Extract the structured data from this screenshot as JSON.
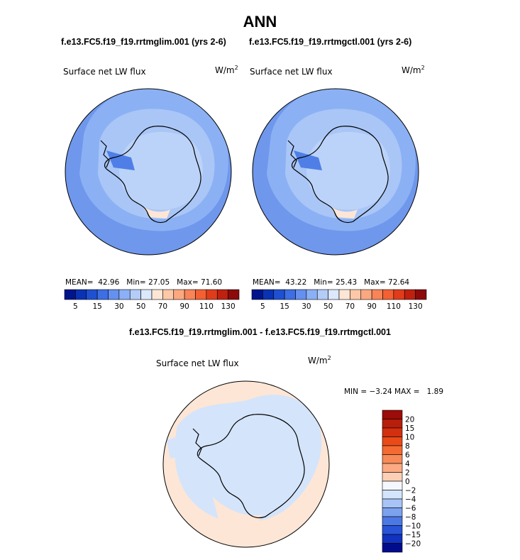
{
  "title": "ANN",
  "panels": [
    {
      "case_label": "f.e13.FC5.f19_f19.rrtmglim.001 (yrs 2-6)",
      "variable": "Surface net LW flux",
      "units_base": "W/m",
      "units_exp": "2",
      "stats": {
        "mean_label": "MEAN=",
        "mean": "42.96",
        "min_label": "Min=",
        "min": "27.05",
        "max_label": "Max=",
        "max": "71.60"
      }
    },
    {
      "case_label": "f.e13.FC5.f19_f19.rrtmgctl.001 (yrs 2-6)",
      "variable": "Surface net LW flux",
      "units_base": "W/m",
      "units_exp": "2",
      "stats": {
        "mean_label": "MEAN=",
        "mean": "43.22",
        "min_label": "Min=",
        "min": "25.43",
        "max_label": "Max=",
        "max": "72.64"
      }
    }
  ],
  "difference": {
    "title": "f.e13.FC5.f19_f19.rrtmglim.001 - f.e13.FC5.f19_f19.rrtmgctl.001",
    "variable": "Surface net LW flux",
    "units_base": "W/m",
    "units_exp": "2",
    "min_label": "MIN =",
    "min": "−3.24",
    "max_label": "MAX =",
    "max": "1.89"
  },
  "chart_data": [
    {
      "type": "heatmap",
      "projection": "south-polar-stereographic",
      "title": "f.e13.FC5.f19_f19.rrtmglim.001 (yrs 2-6)",
      "field": "Surface net LW flux",
      "units": "W/m2",
      "mean": 42.96,
      "min": 27.05,
      "max": 71.6,
      "colorbar": {
        "orientation": "horizontal",
        "tick_labels": [
          "5",
          "15",
          "30",
          "50",
          "70",
          "90",
          "110",
          "130"
        ],
        "colors": [
          "#00148c",
          "#0a32b4",
          "#1e50d2",
          "#3c6ee6",
          "#6490f0",
          "#8cb0f6",
          "#b4ccf8",
          "#dce8fc",
          "#fde6d6",
          "#fcc8a8",
          "#fba880",
          "#f88458",
          "#f46032",
          "#e03c1a",
          "#c02010",
          "#8c0a0a"
        ]
      }
    },
    {
      "type": "heatmap",
      "projection": "south-polar-stereographic",
      "title": "f.e13.FC5.f19_f19.rrtmgctl.001 (yrs 2-6)",
      "field": "Surface net LW flux",
      "units": "W/m2",
      "mean": 43.22,
      "min": 25.43,
      "max": 72.64,
      "colorbar": {
        "orientation": "horizontal",
        "tick_labels": [
          "5",
          "15",
          "30",
          "50",
          "70",
          "90",
          "110",
          "130"
        ],
        "colors": [
          "#00148c",
          "#0a32b4",
          "#1e50d2",
          "#3c6ee6",
          "#6490f0",
          "#8cb0f6",
          "#b4ccf8",
          "#dce8fc",
          "#fde6d6",
          "#fcc8a8",
          "#fba880",
          "#f88458",
          "#f46032",
          "#e03c1a",
          "#c02010",
          "#8c0a0a"
        ]
      }
    },
    {
      "type": "heatmap",
      "projection": "south-polar-stereographic",
      "title": "f.e13.FC5.f19_f19.rrtmglim.001 - f.e13.FC5.f19_f19.rrtmgctl.001",
      "field": "Surface net LW flux",
      "units": "W/m2",
      "min": -3.24,
      "max": 1.89,
      "colorbar": {
        "orientation": "vertical",
        "tick_labels": [
          "20",
          "15",
          "10",
          "8",
          "6",
          "4",
          "2",
          "0",
          "−2",
          "−4",
          "−6",
          "−8",
          "−10",
          "−15",
          "−20"
        ],
        "colors": [
          "#9c0c08",
          "#b81e0c",
          "#d23010",
          "#ea4a18",
          "#f46a32",
          "#f88a58",
          "#fbaa82",
          "#fcd0b4",
          "#f4f8fe",
          "#d4e4fb",
          "#a8c4f6",
          "#7ca2ee",
          "#4c78e4",
          "#2a54d8",
          "#1232c0",
          "#000c8c"
        ]
      }
    }
  ]
}
